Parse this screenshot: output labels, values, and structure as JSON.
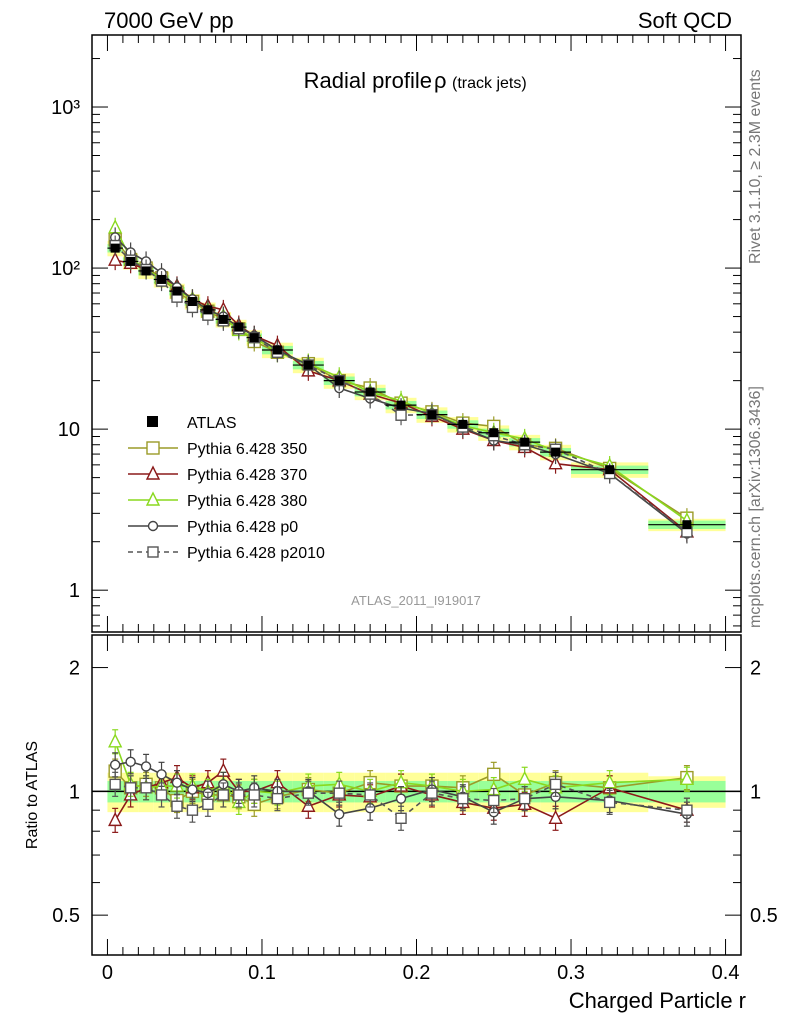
{
  "header": {
    "left": "7000 GeV pp",
    "right": "Soft QCD",
    "side_top": "Rivet 3.1.10, ≥ 2.3M events",
    "side_bottom": "mcplots.cern.ch [arXiv:1306.3436]"
  },
  "chart_data": {
    "type": "line",
    "title": "Radial profile ρ (track jets)",
    "title_main": "Radial profile",
    "title_symbol": "ρ",
    "title_suffix": "(track jets)",
    "analysis_label": "ATLAS_2011_I919017",
    "xlabel": "Charged Particle r",
    "ylabel_ratio": "Ratio to ATLAS",
    "x_ticks": [
      "0",
      "0.1",
      "0.2",
      "0.3",
      "0.4"
    ],
    "y_ticks_main": [
      "1",
      "10",
      "10²",
      "10³"
    ],
    "y_ticks_ratio": [
      "0.5",
      "1",
      "2"
    ],
    "y_scale_main": "log",
    "y_scale_ratio": "log",
    "xlim": [
      -0.01,
      0.41
    ],
    "ylim_main": [
      0.55,
      2800
    ],
    "ylim_ratio": [
      0.4,
      2.4
    ],
    "legend_position": "left-middle",
    "grid": false,
    "x": [
      0.005,
      0.015,
      0.025,
      0.035,
      0.045,
      0.055,
      0.065,
      0.075,
      0.085,
      0.095,
      0.11,
      0.13,
      0.15,
      0.17,
      0.19,
      0.21,
      0.23,
      0.25,
      0.27,
      0.29,
      0.325,
      0.375
    ],
    "xerr": [
      0.005,
      0.005,
      0.005,
      0.005,
      0.005,
      0.005,
      0.005,
      0.005,
      0.005,
      0.005,
      0.01,
      0.01,
      0.01,
      0.01,
      0.01,
      0.01,
      0.01,
      0.01,
      0.01,
      0.01,
      0.025,
      0.025
    ],
    "data": {
      "name": "ATLAS",
      "values": [
        133,
        110,
        96,
        85,
        72,
        62,
        55,
        48,
        43,
        37,
        31,
        25,
        20,
        17,
        14.1,
        12.3,
        10.7,
        9.5,
        8.3,
        7.2,
        5.6,
        2.55
      ],
      "band_inner": 0.06,
      "band_outer": 0.11,
      "band_outer_split_x": 0.35
    },
    "series": [
      {
        "name": "Pythia 6.428 350",
        "color": "#9b9b28",
        "marker": "square",
        "dashed": false,
        "values": [
          150,
          113,
          100,
          87,
          71,
          62,
          54,
          48,
          42,
          35,
          30,
          25.5,
          20,
          18,
          14.5,
          12.8,
          10.9,
          10.4,
          8,
          7.6,
          5.7,
          2.8
        ],
        "ratio": [
          1.12,
          1.02,
          1.04,
          1.02,
          0.95,
          1.0,
          0.98,
          0.98,
          0.97,
          0.93,
          0.97,
          1.01,
          0.99,
          1.05,
          1.03,
          1.03,
          1.02,
          1.1,
          0.98,
          1.05,
          1.02,
          1.08
        ]
      },
      {
        "name": "Pythia 6.428 370",
        "color": "#8b1a1a",
        "marker": "triangle",
        "dashed": false,
        "values": [
          112,
          107,
          98,
          88,
          77,
          64,
          58,
          55,
          44,
          38,
          33,
          23,
          20,
          16.5,
          14.5,
          12,
          10,
          8.5,
          7.7,
          6.1,
          5.6,
          2.3
        ],
        "ratio": [
          0.85,
          0.98,
          1.02,
          1.05,
          1.08,
          1.02,
          1.05,
          1.12,
          1.0,
          1.0,
          1.05,
          0.92,
          0.98,
          0.97,
          1.03,
          0.98,
          0.94,
          0.91,
          0.93,
          0.86,
          1.02,
          0.9
        ]
      },
      {
        "name": "Pythia 6.428 380",
        "color": "#8ad91f",
        "marker": "triangle",
        "dashed": false,
        "values": [
          178,
          115,
          98,
          87,
          74,
          64,
          55,
          50,
          41,
          37,
          30,
          25.5,
          21,
          17,
          15,
          12.5,
          10.5,
          9.5,
          8.7,
          7.3,
          5.9,
          2.7
        ],
        "ratio": [
          1.32,
          1.04,
          1.02,
          1.03,
          1.03,
          1.03,
          1.0,
          1.04,
          0.94,
          1.0,
          0.99,
          1.03,
          1.04,
          1.0,
          1.05,
          1.03,
          1.0,
          1.01,
          1.07,
          1.02,
          1.05,
          1.07
        ]
      },
      {
        "name": "Pythia 6.428 p0",
        "color": "#444444",
        "marker": "circle",
        "dashed": false,
        "values": [
          155,
          125,
          110,
          93,
          76,
          64,
          55,
          50,
          43,
          38,
          31,
          25,
          18,
          15.5,
          13.5,
          12.5,
          10.2,
          8.5,
          8,
          7,
          5.3,
          2.25
        ],
        "ratio": [
          1.16,
          1.18,
          1.15,
          1.1,
          1.05,
          1.01,
          0.99,
          1.04,
          1.0,
          1.02,
          1.0,
          1.0,
          0.88,
          0.91,
          0.96,
          1.01,
          0.97,
          0.89,
          0.96,
          0.97,
          0.95,
          0.88
        ]
      },
      {
        "name": "Pythia 6.428 p2010",
        "color": "#555555",
        "marker": "square-open",
        "dashed": true,
        "values": [
          138,
          112,
          98,
          83,
          66,
          57,
          51,
          47,
          42,
          37,
          30,
          25,
          20,
          16.5,
          12.2,
          12.3,
          10.3,
          9.1,
          8,
          7.5,
          5.3,
          2.3
        ],
        "ratio": [
          1.04,
          1.02,
          1.02,
          0.98,
          0.92,
          0.9,
          0.93,
          0.98,
          0.98,
          0.98,
          0.96,
          0.99,
          0.99,
          0.98,
          0.86,
          0.99,
          0.96,
          0.95,
          0.96,
          1.04,
          0.94,
          0.9
        ]
      }
    ]
  }
}
